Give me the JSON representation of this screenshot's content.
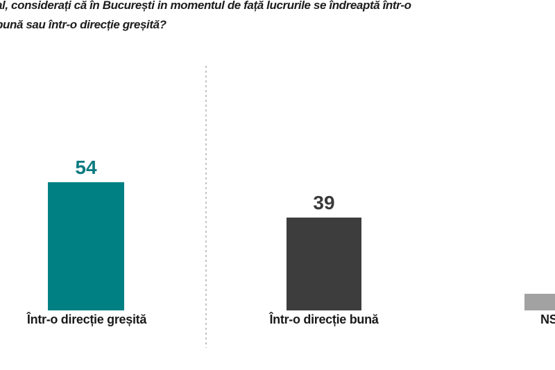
{
  "title": {
    "line1": "al, considerați că în București in momentul de față lucrurile se îndreaptă într-o",
    "line2": "bună sau într-o direcție greșită?",
    "note": "question text cropped at left/top edge of screenshot"
  },
  "chart_data": {
    "type": "bar",
    "title": "al, considerați că în București in momentul de față lucrurile se îndreaptă într-o bună sau într-o direcție greșită?",
    "categories": [
      "Într-o direcție greșită",
      "Într-o direcție bună",
      "NS"
    ],
    "values": [
      54,
      39,
      7
    ],
    "series": [
      {
        "label": "Într-o direcție greșită",
        "value": 54,
        "value_label_visible": true,
        "color": "#008083",
        "value_color": "#0c7b81"
      },
      {
        "label": "Într-o direcție bună",
        "value": 39,
        "value_label_visible": true,
        "color": "#3d3d3d",
        "value_color": "#3a3a3a"
      },
      {
        "label": "NS",
        "value": 7,
        "value_label_visible": false,
        "color": "#a2a2a2",
        "value_color": null,
        "note": "third bar and its label are cropped at the right edge; value estimated from bar height"
      }
    ],
    "ylim": [
      0,
      60
    ],
    "grid": false,
    "legend": false,
    "layout_hints": {
      "orientation": "vertical",
      "divider": "dashed vertical line between first and second bar"
    }
  }
}
